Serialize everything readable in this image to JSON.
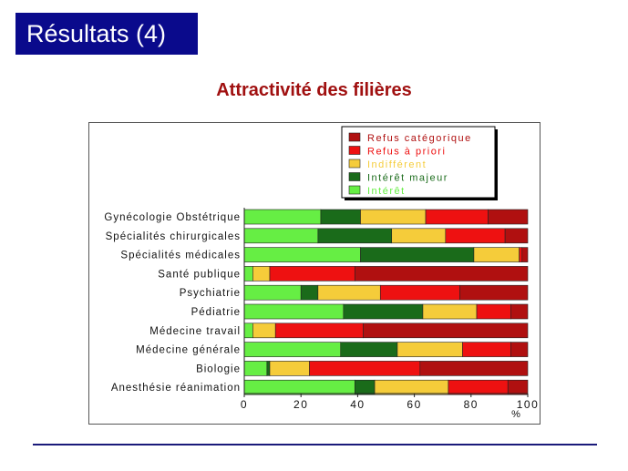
{
  "slide": {
    "title": "Résultats (4)"
  },
  "colors": {
    "title_bg": "#0a0a8c",
    "chart_title": "#a01010",
    "divider": "#1a1a7a"
  },
  "chart_data": {
    "type": "bar",
    "orientation": "horizontal",
    "stacked": true,
    "title": "Attractivité des filières",
    "xlabel": "%",
    "ylabel": "",
    "xlim": [
      0,
      100
    ],
    "xticks": [
      0,
      20,
      40,
      60,
      80,
      100
    ],
    "grid": false,
    "legend_position": "top-right",
    "categories": [
      "Gynécologie Obstétrique",
      "Spécialités chirurgicales",
      "Spécialités médicales",
      "Santé publique",
      "Psychiatrie",
      "Pédiatrie",
      "Médecine travail",
      "Médecine générale",
      "Biologie",
      "Anesthésie réanimation"
    ],
    "series": [
      {
        "name": "Intérêt",
        "color": "#66ee44",
        "values": [
          27,
          26,
          41,
          3,
          20,
          35,
          3,
          34,
          8,
          39
        ]
      },
      {
        "name": "Intérêt majeur",
        "color": "#1a6b1a",
        "values": [
          14,
          26,
          40,
          0,
          6,
          28,
          0,
          20,
          1,
          7
        ]
      },
      {
        "name": "Indifférent",
        "color": "#f5cc3a",
        "values": [
          23,
          19,
          16,
          6,
          22,
          19,
          8,
          23,
          14,
          26
        ]
      },
      {
        "name": "Refus à priori",
        "color": "#ee1111",
        "values": [
          22,
          21,
          1,
          30,
          28,
          12,
          31,
          17,
          39,
          21
        ]
      },
      {
        "name": "Refus catégorique",
        "color": "#b01010",
        "values": [
          14,
          8,
          2,
          61,
          24,
          6,
          58,
          6,
          38,
          7
        ]
      }
    ]
  }
}
